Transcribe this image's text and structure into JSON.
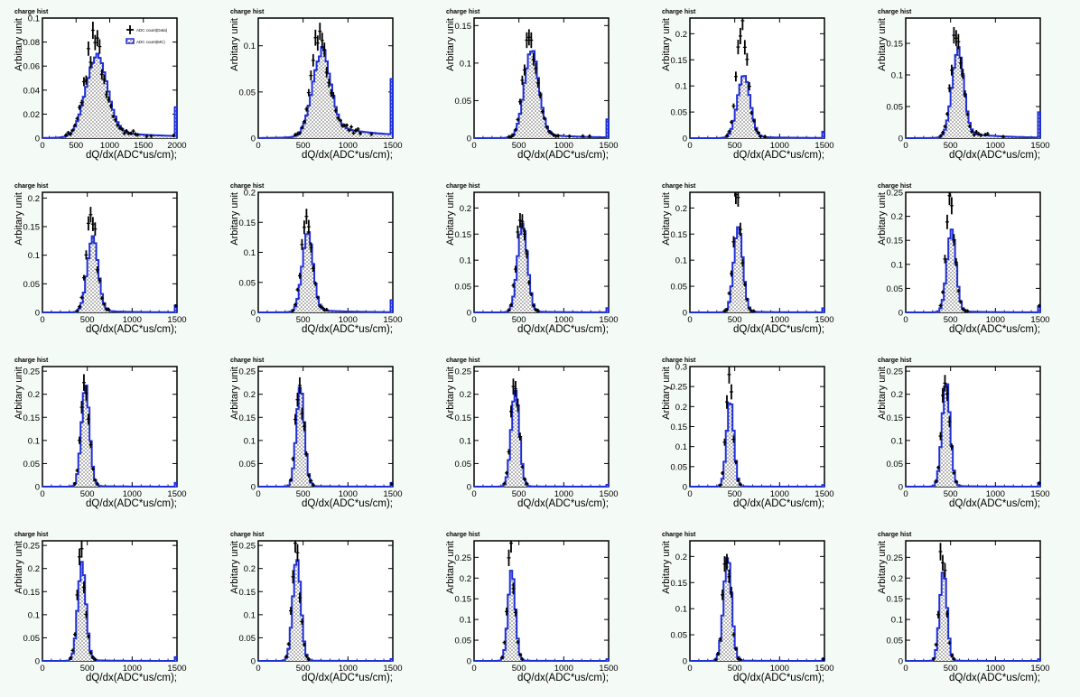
{
  "common": {
    "title": "charge hist",
    "xlabel": "dQ/dx(ADC*us/cm);",
    "ylabel": "Arbitary unit",
    "legend": [
      "ADC count(Data)",
      "ADC count(MC)"
    ],
    "colors": {
      "data": "#000000",
      "mc": "#1f2fd6",
      "background": "#f4faf5"
    }
  },
  "chart_data": [
    {
      "type": "histogram",
      "title": "charge hist",
      "xlabel": "dQ/dx(ADC*us/cm);",
      "ylabel": "Arbitary unit",
      "xlim": [
        0,
        2000
      ],
      "ylim": [
        0,
        0.1
      ],
      "xticks": [
        0,
        500,
        1000,
        1500,
        2000
      ],
      "yticks": [
        0,
        0.02,
        0.04,
        0.06,
        0.08,
        0.1
      ],
      "mean": 800,
      "sigma": 160,
      "mc_peak": 0.065,
      "data_peak": 0.08,
      "tail": 0.006,
      "legend": [
        "ADC count(Data)",
        "ADC count(MC)"
      ],
      "legend_position": "top-right"
    },
    {
      "type": "histogram",
      "title": "charge hist",
      "xlabel": "dQ/dx(ADC*us/cm);",
      "ylabel": "Arbitary unit",
      "xlim": [
        0,
        1500
      ],
      "ylim": [
        0,
        0.13
      ],
      "xticks": [
        0,
        500,
        1000,
        1500
      ],
      "yticks": [
        0,
        0.05,
        0.1
      ],
      "mean": 700,
      "sigma": 100,
      "mc_peak": 0.085,
      "data_peak": 0.11,
      "tail": 0.015
    },
    {
      "type": "histogram",
      "title": "charge hist",
      "xlabel": "dQ/dx(ADC*us/cm);",
      "ylabel": "Arbitary unit",
      "xlim": [
        0,
        1500
      ],
      "ylim": [
        0,
        0.16
      ],
      "xticks": [
        0,
        500,
        1000,
        1500
      ],
      "yticks": [
        0,
        0.05,
        0.1,
        0.15
      ],
      "mean": 640,
      "sigma": 80,
      "mc_peak": 0.115,
      "data_peak": 0.135,
      "tail": 0.006
    },
    {
      "type": "histogram",
      "title": "charge hist",
      "xlabel": "dQ/dx(ADC*us/cm);",
      "ylabel": "Arbitary unit",
      "xlim": [
        0,
        1500
      ],
      "ylim": [
        0,
        0.23
      ],
      "xticks": [
        0,
        500,
        1000,
        1500
      ],
      "yticks": [
        0,
        0.05,
        0.1,
        0.15,
        0.2
      ],
      "mean": 600,
      "sigma": 70,
      "mc_peak": 0.12,
      "data_peak": 0.2,
      "tail": 0.003
    },
    {
      "type": "histogram",
      "title": "charge hist",
      "xlabel": "dQ/dx(ADC*us/cm);",
      "ylabel": "Arbitary unit",
      "xlim": [
        0,
        1500
      ],
      "ylim": [
        0,
        0.19
      ],
      "xticks": [
        0,
        500,
        1000,
        1500
      ],
      "yticks": [
        0,
        0.05,
        0.1,
        0.15
      ],
      "mean": 580,
      "sigma": 65,
      "mc_peak": 0.135,
      "data_peak": 0.165,
      "tail": 0.01
    },
    {
      "type": "histogram",
      "title": "charge hist",
      "xlabel": "dQ/dx(ADC*us/cm);",
      "ylabel": "Arbitary unit",
      "xlim": [
        0,
        1500
      ],
      "ylim": [
        0,
        0.21
      ],
      "xticks": [
        0,
        500,
        1000,
        1500
      ],
      "yticks": [
        0,
        0.05,
        0.1,
        0.15,
        0.2
      ],
      "mean": 560,
      "sigma": 60,
      "mc_peak": 0.13,
      "data_peak": 0.18,
      "tail": 0.003
    },
    {
      "type": "histogram",
      "title": "charge hist",
      "xlabel": "dQ/dx(ADC*us/cm);",
      "ylabel": "Arbitary unit",
      "xlim": [
        0,
        1500
      ],
      "ylim": [
        0,
        0.2
      ],
      "xticks": [
        0,
        500,
        1000,
        1500
      ],
      "yticks": [
        0,
        0.05,
        0.1,
        0.15,
        0.2
      ],
      "mean": 550,
      "sigma": 60,
      "mc_peak": 0.13,
      "data_peak": 0.17,
      "tail": 0.005
    },
    {
      "type": "histogram",
      "title": "charge hist",
      "xlabel": "dQ/dx(ADC*us/cm);",
      "ylabel": "Arbitary unit",
      "xlim": [
        0,
        1500
      ],
      "ylim": [
        0,
        0.23
      ],
      "xticks": [
        0,
        500,
        1000,
        1500
      ],
      "yticks": [
        0,
        0.05,
        0.1,
        0.15,
        0.2
      ],
      "mean": 540,
      "sigma": 55,
      "mc_peak": 0.17,
      "data_peak": 0.205,
      "tail": 0.002
    },
    {
      "type": "histogram",
      "title": "charge hist",
      "xlabel": "dQ/dx(ADC*us/cm);",
      "ylabel": "Arbitary unit",
      "xlim": [
        0,
        1500
      ],
      "ylim": [
        0,
        0.23
      ],
      "xticks": [
        0,
        500,
        1000,
        1500
      ],
      "yticks": [
        0,
        0.05,
        0.1,
        0.15,
        0.2
      ],
      "mean": 540,
      "sigma": 50,
      "mc_peak": 0.165,
      "data_peak": 0.21,
      "tail": 0.002
    },
    {
      "type": "histogram",
      "title": "charge hist",
      "xlabel": "dQ/dx(ADC*us/cm);",
      "ylabel": "Arbitary unit",
      "xlim": [
        0,
        1500
      ],
      "ylim": [
        0,
        0.25
      ],
      "xticks": [
        0,
        500,
        1000,
        1500
      ],
      "yticks": [
        0,
        0.05,
        0.1,
        0.15,
        0.2,
        0.25
      ],
      "mean": 510,
      "sigma": 50,
      "mc_peak": 0.17,
      "data_peak": 0.235,
      "tail": 0.003
    },
    {
      "type": "histogram",
      "title": "charge hist",
      "xlabel": "dQ/dx(ADC*us/cm);",
      "ylabel": "Arbitary unit",
      "xlim": [
        0,
        1500
      ],
      "ylim": [
        0,
        0.26
      ],
      "xticks": [
        0,
        500,
        1000,
        1500
      ],
      "yticks": [
        0,
        0.05,
        0.1,
        0.15,
        0.2,
        0.25
      ],
      "mean": 480,
      "sigma": 45,
      "mc_peak": 0.22,
      "data_peak": 0.235,
      "tail": 0.002
    },
    {
      "type": "histogram",
      "title": "charge hist",
      "xlabel": "dQ/dx(ADC*us/cm);",
      "ylabel": "Arbitary unit",
      "xlim": [
        0,
        1500
      ],
      "ylim": [
        0,
        0.26
      ],
      "xticks": [
        0,
        500,
        1000,
        1500
      ],
      "yticks": [
        0,
        0.05,
        0.1,
        0.15,
        0.2,
        0.25
      ],
      "mean": 470,
      "sigma": 45,
      "mc_peak": 0.215,
      "data_peak": 0.235,
      "tail": 0.002
    },
    {
      "type": "histogram",
      "title": "charge hist",
      "xlabel": "dQ/dx(ADC*us/cm);",
      "ylabel": "Arbitary unit",
      "xlim": [
        0,
        1500
      ],
      "ylim": [
        0,
        0.26
      ],
      "xticks": [
        0,
        500,
        1000,
        1500
      ],
      "yticks": [
        0,
        0.05,
        0.1,
        0.15,
        0.2,
        0.25
      ],
      "mean": 460,
      "sigma": 45,
      "mc_peak": 0.21,
      "data_peak": 0.245,
      "tail": 0.001
    },
    {
      "type": "histogram",
      "title": "charge hist",
      "xlabel": "dQ/dx(ADC*us/cm);",
      "ylabel": "Arbitary unit",
      "xlim": [
        0,
        1500
      ],
      "ylim": [
        0,
        0.3
      ],
      "xticks": [
        0,
        500,
        1000,
        1500
      ],
      "yticks": [
        0,
        0.05,
        0.1,
        0.15,
        0.2,
        0.25,
        0.3
      ],
      "mean": 450,
      "sigma": 40,
      "mc_peak": 0.215,
      "data_peak": 0.29,
      "tail": 0.001
    },
    {
      "type": "histogram",
      "title": "charge hist",
      "xlabel": "dQ/dx(ADC*us/cm);",
      "ylabel": "Arbitary unit",
      "xlim": [
        0,
        1500
      ],
      "ylim": [
        0,
        0.26
      ],
      "xticks": [
        0,
        500,
        1000,
        1500
      ],
      "yticks": [
        0,
        0.05,
        0.1,
        0.15,
        0.2,
        0.25
      ],
      "mean": 450,
      "sigma": 45,
      "mc_peak": 0.225,
      "data_peak": 0.24,
      "tail": 0.002
    },
    {
      "type": "histogram",
      "title": "charge hist",
      "xlabel": "dQ/dx(ADC*us/cm);",
      "ylabel": "Arbitary unit",
      "xlim": [
        0,
        1500
      ],
      "ylim": [
        0,
        0.26
      ],
      "xticks": [
        0,
        500,
        1000,
        1500
      ],
      "yticks": [
        0,
        0.05,
        0.1,
        0.15,
        0.2,
        0.25
      ],
      "mean": 440,
      "sigma": 45,
      "mc_peak": 0.21,
      "data_peak": 0.235,
      "tail": 0.002
    },
    {
      "type": "histogram",
      "title": "charge hist",
      "xlabel": "dQ/dx(ADC*us/cm);",
      "ylabel": "Arbitary unit",
      "xlim": [
        0,
        1500
      ],
      "ylim": [
        0,
        0.26
      ],
      "xticks": [
        0,
        500,
        1000,
        1500
      ],
      "yticks": [
        0,
        0.05,
        0.1,
        0.15,
        0.2,
        0.25
      ],
      "mean": 430,
      "sigma": 45,
      "mc_peak": 0.22,
      "data_peak": 0.24,
      "tail": 0.001
    },
    {
      "type": "histogram",
      "title": "charge hist",
      "xlabel": "dQ/dx(ADC*us/cm);",
      "ylabel": "Arbitary unit",
      "xlim": [
        0,
        1500
      ],
      "ylim": [
        0,
        0.29
      ],
      "xticks": [
        0,
        500,
        1000,
        1500
      ],
      "yticks": [
        0,
        0.05,
        0.1,
        0.15,
        0.2,
        0.25
      ],
      "mean": 420,
      "sigma": 40,
      "mc_peak": 0.22,
      "data_peak": 0.27,
      "tail": 0.001
    },
    {
      "type": "histogram",
      "title": "charge hist",
      "xlabel": "dQ/dx(ADC*us/cm);",
      "ylabel": "Arbitary unit",
      "xlim": [
        0,
        1500
      ],
      "ylim": [
        0,
        0.23
      ],
      "xticks": [
        0,
        500,
        1000,
        1500
      ],
      "yticks": [
        0,
        0.05,
        0.1,
        0.15,
        0.2
      ],
      "mean": 420,
      "sigma": 45,
      "mc_peak": 0.2,
      "data_peak": 0.215,
      "tail": 0.001
    },
    {
      "type": "histogram",
      "title": "charge hist",
      "xlabel": "dQ/dx(ADC*us/cm);",
      "ylabel": "Arbitary unit",
      "xlim": [
        0,
        1500
      ],
      "ylim": [
        0,
        0.29
      ],
      "xticks": [
        0,
        500,
        1000,
        1500
      ],
      "yticks": [
        0,
        0.05,
        0.1,
        0.15,
        0.2,
        0.25
      ],
      "mean": 420,
      "sigma": 40,
      "mc_peak": 0.22,
      "data_peak": 0.27,
      "tail": 0.001
    }
  ]
}
